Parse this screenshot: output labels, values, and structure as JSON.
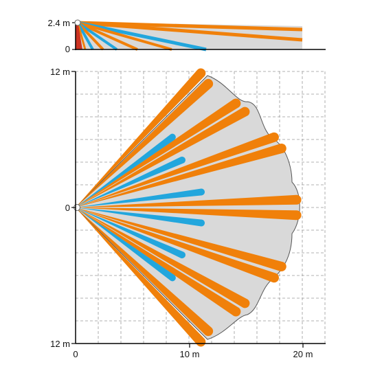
{
  "colors": {
    "coverage": "#d9d9d9",
    "long_beam": "#f0800a",
    "short_beam": "#22a6dd",
    "grid": "#999999",
    "axis": "#000000",
    "sensor_body": "#cc3322"
  },
  "side_view": {
    "labels": {
      "height": "2.4 m",
      "zero": "0"
    },
    "height_m": 2.4,
    "range_m": 20
  },
  "top_view": {
    "labels": {
      "top": "12 m",
      "origin": "0",
      "bottom": "12 m",
      "x0": "0",
      "x10": "10 m",
      "x20": "20 m"
    },
    "range_x_m": 20,
    "range_y_m": 12,
    "long_beams": [
      {
        "angle_deg": 47,
        "length_m": 16.2
      },
      {
        "angle_deg": 43,
        "length_m": 16.0
      },
      {
        "angle_deg": 33,
        "length_m": 16.9
      },
      {
        "angle_deg": 29.5,
        "length_m": 17.2
      },
      {
        "angle_deg": 19.5,
        "length_m": 18.6
      },
      {
        "angle_deg": 16,
        "length_m": 18.9
      },
      {
        "angle_deg": 2,
        "length_m": 19.5
      },
      {
        "angle_deg": -2,
        "length_m": 19.5
      },
      {
        "angle_deg": -16,
        "length_m": 18.9
      },
      {
        "angle_deg": -19.5,
        "length_m": 18.6
      },
      {
        "angle_deg": -29.5,
        "length_m": 17.2
      },
      {
        "angle_deg": -33,
        "length_m": 16.9
      },
      {
        "angle_deg": -43,
        "length_m": 16.0
      },
      {
        "angle_deg": -47,
        "length_m": 16.2
      }
    ],
    "short_beams": [
      {
        "angle_deg": 36,
        "length_m": 10.6
      },
      {
        "angle_deg": 24,
        "length_m": 10.3
      },
      {
        "angle_deg": 7,
        "length_m": 11.2
      },
      {
        "angle_deg": -7,
        "length_m": 11.2
      },
      {
        "angle_deg": -24,
        "length_m": 10.3
      },
      {
        "angle_deg": -36,
        "length_m": 10.6
      }
    ]
  }
}
